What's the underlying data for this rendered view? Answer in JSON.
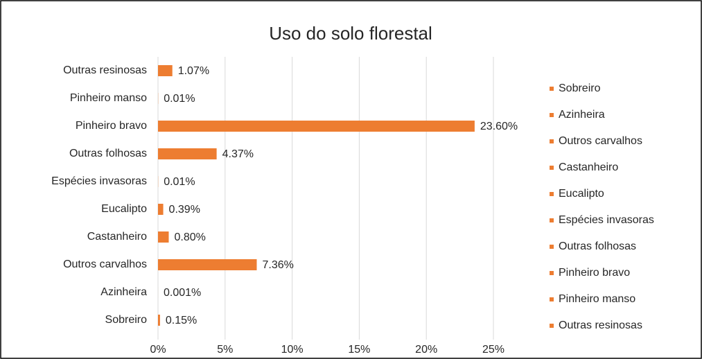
{
  "chart_data": {
    "type": "barh",
    "title": "Uso do solo florestal",
    "categories": [
      "Sobreiro",
      "Azinheira",
      "Outros carvalhos",
      "Castanheiro",
      "Eucalipto",
      "Espécies invasoras",
      "Outras folhosas",
      "Pinheiro bravo",
      "Pinheiro manso",
      "Outras resinosas"
    ],
    "values": [
      0.15,
      0.001,
      7.36,
      0.8,
      0.39,
      0.01,
      4.37,
      23.6,
      0.01,
      1.07
    ],
    "value_labels": [
      "0.15%",
      "0.001%",
      "7.36%",
      "0.80%",
      "0.39%",
      "0.01%",
      "4.37%",
      "23.60%",
      "0.01%",
      "1.07%"
    ],
    "color": "#ed7d31",
    "xlim": [
      0,
      25
    ],
    "xticks": [
      {
        "value": 0,
        "label": "0%"
      },
      {
        "value": 5,
        "label": "5%"
      },
      {
        "value": 10,
        "label": "10%"
      },
      {
        "value": 15,
        "label": "15%"
      },
      {
        "value": 20,
        "label": "20%"
      },
      {
        "value": 25,
        "label": "25%"
      }
    ],
    "grid": true,
    "legend": "right"
  }
}
